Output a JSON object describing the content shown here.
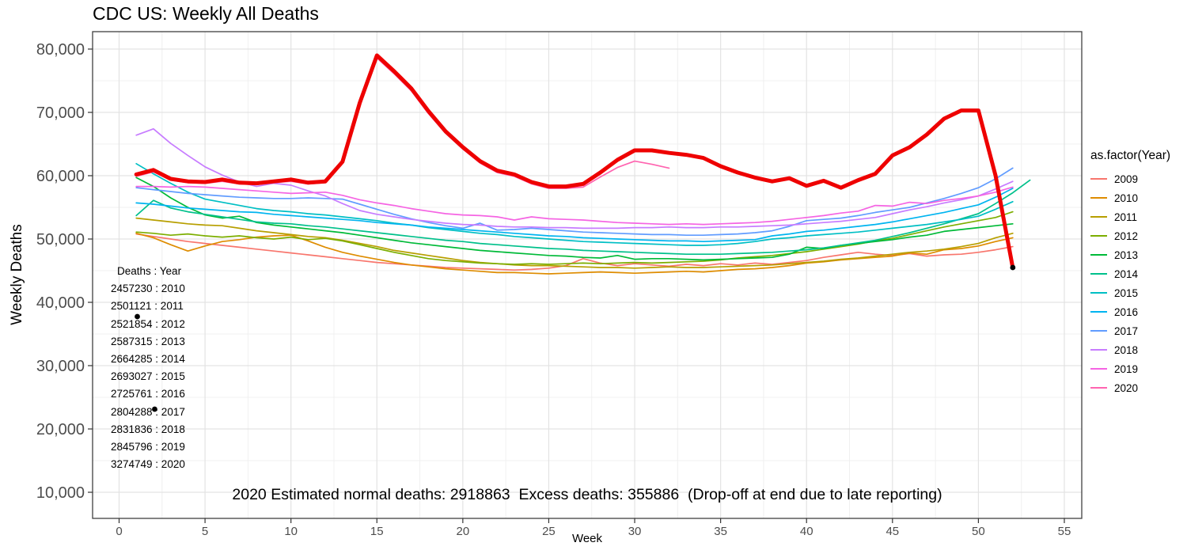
{
  "chart": {
    "title": "CDC US: Weekly All Deaths",
    "xlabel": "Week",
    "ylabel": "Weekly Deaths",
    "legend_title": "as.factor(Year)",
    "annotation_totals": [
      "Deaths : Year",
      "2457230 : 2010",
      "2501121 : 2011",
      "2521854 : 2012",
      "2587315 : 2013",
      "2664285 : 2014",
      "2693027 : 2015",
      "2725761 : 2016",
      "2804288 : 2017",
      "2831836 : 2018",
      "2845796 : 2019",
      "3274749 : 2020"
    ],
    "bottom_note": "2020 Estimated normal deaths: 2918863  Excess deaths: 355886  (Drop-off at end due to late reporting)"
  },
  "chart_data": {
    "type": "line",
    "title": "CDC US: Weekly All Deaths",
    "xlabel": "Week",
    "ylabel": "Weekly Deaths",
    "xlim": [
      -1.5,
      56
    ],
    "ylim": [
      5875,
      82750
    ],
    "x_ticks": [
      0,
      5,
      10,
      15,
      20,
      25,
      30,
      35,
      40,
      45,
      50,
      55
    ],
    "y_ticks": [
      10000,
      20000,
      30000,
      40000,
      50000,
      60000,
      70000,
      80000
    ],
    "y_tick_labels": [
      "10,000",
      "20,000",
      "30,000",
      "40,000",
      "50,000",
      "60,000",
      "70,000",
      "80,000"
    ],
    "grid": "major+minor",
    "legend_position": "right",
    "legend_entries": [
      {
        "label": "2009",
        "color": "#F8766D"
      },
      {
        "label": "2010",
        "color": "#DE8C00"
      },
      {
        "label": "2011",
        "color": "#B79F00"
      },
      {
        "label": "2012",
        "color": "#7CAE00"
      },
      {
        "label": "2013",
        "color": "#00BA38"
      },
      {
        "label": "2014",
        "color": "#00C08B"
      },
      {
        "label": "2015",
        "color": "#00BFC4"
      },
      {
        "label": "2016",
        "color": "#00B4F0"
      },
      {
        "label": "2017",
        "color": "#619CFF"
      },
      {
        "label": "2018",
        "color": "#C77CFF"
      },
      {
        "label": "2019",
        "color": "#F564E3"
      },
      {
        "label": "2020",
        "color": "#FF64B0"
      }
    ],
    "series": [
      {
        "name": "2009",
        "color": "#F8766D",
        "width": 1.7,
        "start_week": 1,
        "values": [
          50800,
          50400,
          50000,
          49600,
          49300,
          49000,
          48700,
          48400,
          48100,
          47800,
          47500,
          47200,
          46900,
          46600,
          46300,
          46100,
          45900,
          45700,
          45500,
          45400,
          45300,
          45200,
          45100,
          45200,
          45400,
          45800,
          46900,
          46200,
          45800,
          46100,
          45900,
          45700,
          46000,
          45800,
          46100,
          45900,
          46200,
          46000,
          46300,
          46600,
          47100,
          47500,
          47900,
          47600,
          47400,
          47700,
          47300,
          47500,
          47600,
          47900,
          48300,
          48800
        ]
      },
      {
        "name": "2010",
        "color": "#DE8C00",
        "width": 1.7,
        "start_week": 1,
        "values": [
          50900,
          50200,
          49100,
          48100,
          48900,
          49600,
          49900,
          50300,
          50500,
          50600,
          49700,
          48700,
          47900,
          47300,
          46800,
          46300,
          45900,
          45600,
          45300,
          45100,
          44900,
          44700,
          44700,
          44600,
          44500,
          44600,
          44700,
          44800,
          44700,
          44600,
          44700,
          44800,
          44900,
          44800,
          45000,
          45200,
          45300,
          45500,
          45800,
          46200,
          46400,
          46700,
          46900,
          47100,
          47300,
          47800,
          47600,
          48300,
          48500,
          48900,
          49600,
          50200
        ]
      },
      {
        "name": "2011",
        "color": "#B79F00",
        "width": 1.7,
        "start_week": 1,
        "values": [
          53300,
          53000,
          52700,
          52400,
          52200,
          52100,
          51700,
          51300,
          51000,
          50700,
          50400,
          50200,
          49800,
          49300,
          48800,
          48200,
          47800,
          47400,
          47000,
          46600,
          46300,
          46100,
          45900,
          45800,
          45800,
          45700,
          45600,
          45500,
          45500,
          45400,
          45500,
          45600,
          45500,
          45500,
          45600,
          45700,
          45800,
          45900,
          46100,
          46300,
          46500,
          46800,
          47000,
          47300,
          47600,
          47900,
          48100,
          48400,
          48800,
          49300,
          50200,
          50900
        ]
      },
      {
        "name": "2012",
        "color": "#7CAE00",
        "width": 1.7,
        "start_week": 1,
        "values": [
          51100,
          50900,
          50600,
          50800,
          50500,
          50300,
          50500,
          50200,
          50000,
          50300,
          49900,
          50100,
          49700,
          49100,
          48500,
          47900,
          47400,
          46900,
          46600,
          46400,
          46200,
          46100,
          46000,
          46100,
          46000,
          46100,
          46200,
          46100,
          46200,
          46300,
          46200,
          46300,
          46400,
          46500,
          46700,
          47000,
          47200,
          47400,
          47700,
          48000,
          48400,
          48800,
          49200,
          49700,
          50100,
          50700,
          51300,
          51900,
          52400,
          52900,
          53400,
          54300
        ]
      },
      {
        "name": "2013",
        "color": "#00BA38",
        "width": 1.7,
        "start_week": 1,
        "values": [
          59700,
          58300,
          56500,
          55000,
          53800,
          53300,
          53600,
          52600,
          52200,
          51900,
          51600,
          51300,
          51000,
          50600,
          50200,
          49800,
          49400,
          49100,
          48800,
          48500,
          48200,
          48000,
          47800,
          47600,
          47400,
          47300,
          47100,
          47000,
          47400,
          46800,
          46900,
          46900,
          46800,
          46700,
          46800,
          46900,
          47000,
          47100,
          47600,
          48700,
          48500,
          49000,
          49300,
          49600,
          49900,
          50300,
          50600,
          51200,
          51500,
          51800,
          52100,
          52400
        ]
      },
      {
        "name": "2014",
        "color": "#00C08B",
        "width": 1.7,
        "start_week": 1,
        "values": [
          53700,
          56100,
          54900,
          54300,
          53900,
          53500,
          53100,
          52700,
          52500,
          52400,
          52100,
          51900,
          51600,
          51300,
          51000,
          50700,
          50400,
          50100,
          49800,
          49600,
          49300,
          49100,
          48900,
          48700,
          48500,
          48400,
          48200,
          48100,
          48000,
          47900,
          47800,
          47700,
          47600,
          47600,
          47600,
          47700,
          47800,
          47900,
          48100,
          48300,
          48600,
          49000,
          49400,
          49800,
          50400,
          51000,
          51700,
          52400,
          53200,
          54000,
          55600,
          57300,
          59300
        ]
      },
      {
        "name": "2015",
        "color": "#00BFC4",
        "width": 1.7,
        "start_week": 1,
        "values": [
          61900,
          60300,
          58800,
          57400,
          56300,
          55800,
          55300,
          54800,
          54500,
          54300,
          54000,
          53800,
          53500,
          53200,
          52900,
          52500,
          52200,
          51800,
          51500,
          51200,
          50900,
          50700,
          50400,
          50200,
          50000,
          49800,
          49600,
          49500,
          49400,
          49300,
          49200,
          49100,
          49000,
          49000,
          49100,
          49300,
          49600,
          50000,
          50200,
          50500,
          50700,
          50900,
          51100,
          51400,
          51700,
          52000,
          52300,
          52700,
          53100,
          53600,
          54700,
          55900
        ]
      },
      {
        "name": "2016",
        "color": "#00B4F0",
        "width": 1.7,
        "start_week": 1,
        "values": [
          55700,
          55500,
          55200,
          54900,
          54700,
          54500,
          54300,
          54200,
          53900,
          53700,
          53500,
          53300,
          53100,
          52900,
          52600,
          52400,
          52200,
          51900,
          51700,
          51500,
          51300,
          51100,
          50900,
          50700,
          50500,
          50400,
          50200,
          50100,
          50000,
          49900,
          49800,
          49700,
          49700,
          49600,
          49700,
          49800,
          49900,
          50500,
          50800,
          51200,
          51400,
          51700,
          52000,
          52300,
          52700,
          53200,
          53700,
          54200,
          54800,
          55400,
          56600,
          58000
        ]
      },
      {
        "name": "2017",
        "color": "#619CFF",
        "width": 1.7,
        "start_week": 1,
        "values": [
          58100,
          57800,
          57500,
          57200,
          57000,
          56800,
          56600,
          56500,
          56400,
          56400,
          56500,
          56400,
          56300,
          55500,
          54700,
          53900,
          53200,
          52600,
          52100,
          51700,
          52500,
          51400,
          51500,
          51700,
          51500,
          51300,
          51100,
          51000,
          50900,
          50800,
          50700,
          50700,
          50600,
          50600,
          50700,
          50800,
          51000,
          51300,
          52000,
          52900,
          53100,
          53300,
          53700,
          54200,
          54600,
          55000,
          55700,
          56400,
          57200,
          58100,
          59500,
          61200
        ]
      },
      {
        "name": "2018",
        "color": "#C77CFF",
        "width": 1.7,
        "start_week": 1,
        "values": [
          66400,
          67400,
          65100,
          63200,
          61400,
          60100,
          59000,
          58300,
          58800,
          58500,
          57600,
          56800,
          55600,
          54500,
          53900,
          53500,
          53100,
          52800,
          52500,
          52300,
          52200,
          52000,
          51900,
          51900,
          51800,
          51800,
          51700,
          51700,
          51700,
          51800,
          51800,
          51900,
          51800,
          51800,
          51900,
          51900,
          52000,
          52100,
          52200,
          52400,
          52600,
          52800,
          53100,
          53400,
          54000,
          54600,
          55100,
          55700,
          56200,
          56800,
          57900,
          59100
        ]
      },
      {
        "name": "2019",
        "color": "#F564E3",
        "width": 1.7,
        "start_week": 1,
        "values": [
          58300,
          58300,
          58200,
          58300,
          58200,
          58000,
          57800,
          57600,
          57400,
          57200,
          57300,
          57400,
          56900,
          56200,
          55700,
          55300,
          54800,
          54400,
          54000,
          53800,
          53700,
          53500,
          53000,
          53500,
          53200,
          53100,
          53000,
          52800,
          52600,
          52500,
          52400,
          52300,
          52400,
          52300,
          52400,
          52500,
          52600,
          52800,
          53100,
          53400,
          53700,
          54100,
          54400,
          55300,
          55200,
          55800,
          55600,
          56100,
          56400,
          56800,
          57400,
          58200
        ]
      },
      {
        "name": "2020",
        "color": "#FF64B0",
        "width": 1.7,
        "start_week": 1,
        "values": [
          59900,
          60600,
          59300,
          58900,
          58800,
          59100,
          58700,
          58600,
          58900,
          59100,
          58700,
          58900,
          61900,
          71100,
          78600,
          76100,
          73400,
          69800,
          66700,
          64200,
          62000,
          60500,
          59900,
          58700,
          58000,
          58000,
          58200,
          59800,
          61300,
          62300,
          61800,
          61200
        ]
      },
      {
        "name": "2020-highlight",
        "color": "#EE0000",
        "width": 5,
        "start_week": 1,
        "values": [
          60200,
          60900,
          59500,
          59100,
          59000,
          59400,
          58900,
          58800,
          59100,
          59400,
          58900,
          59100,
          62200,
          71500,
          79000,
          76500,
          73800,
          70200,
          67000,
          64500,
          62300,
          60800,
          60200,
          59000,
          58300,
          58300,
          58700,
          60500,
          62500,
          64000,
          64000,
          63600,
          63300,
          62800,
          61500,
          60500,
          59700,
          59100,
          59600,
          58400,
          59200,
          58100,
          59300,
          60300,
          63200,
          64500,
          66500,
          69000,
          70300,
          70300,
          60000,
          45500
        ]
      }
    ],
    "points": [
      {
        "week": 1.06,
        "value": 37750,
        "color": "#000000"
      },
      {
        "week": 2.07,
        "value": 23125,
        "color": "#000000"
      },
      {
        "week": 52,
        "value": 45500,
        "color": "#000000"
      }
    ]
  }
}
